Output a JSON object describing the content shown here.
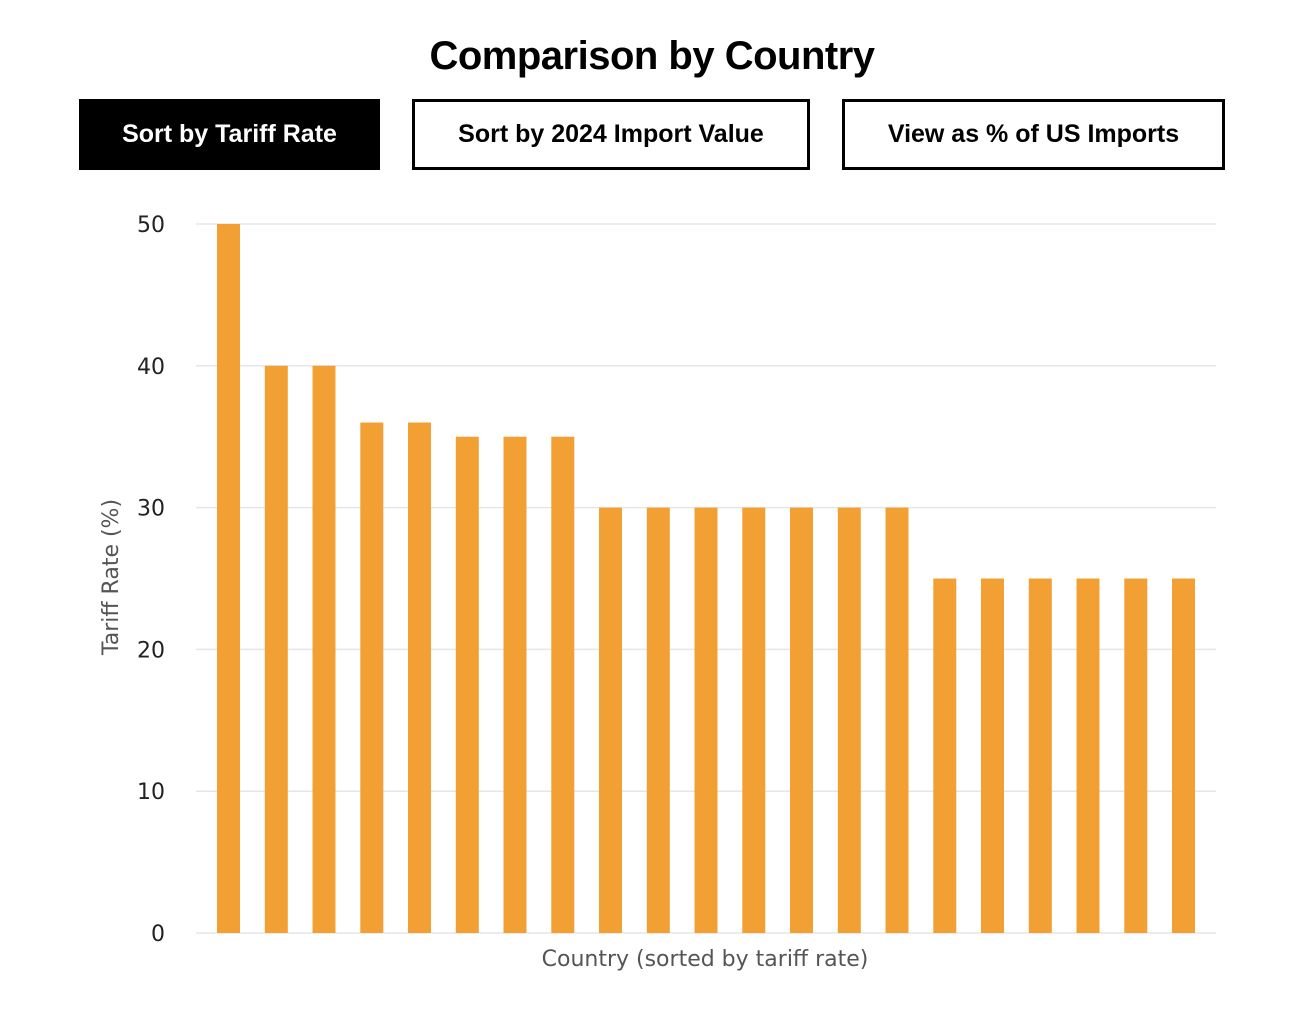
{
  "controls": {
    "sort_tariff_label": "Sort by Tariff Rate",
    "sort_import_label": "Sort by 2024 Import Value",
    "view_pct_label": "View as % of US Imports",
    "active": "sort_tariff"
  },
  "chart_data": {
    "type": "bar",
    "title": "Comparison by Country",
    "xlabel": "Country (sorted by tariff rate)",
    "ylabel": "Tariff Rate (%)",
    "ylim": [
      0,
      50
    ],
    "yticks": [
      0,
      10,
      20,
      30,
      40,
      50
    ],
    "grid": true,
    "bar_color": "#F2A034",
    "values": [
      50,
      40,
      40,
      36,
      36,
      35,
      35,
      35,
      30,
      30,
      30,
      30,
      30,
      30,
      30,
      25,
      25,
      25,
      25,
      25,
      25
    ]
  }
}
